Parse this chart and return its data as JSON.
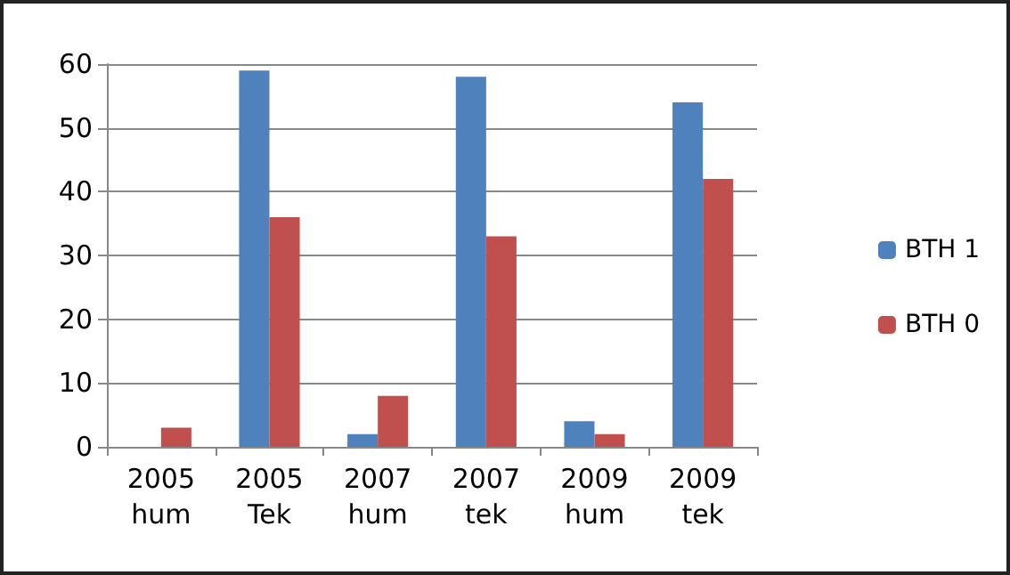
{
  "chart_data": {
    "type": "bar",
    "categories": [
      "2005 hum",
      "2005 Tek",
      "2007 hum",
      "2007 tek",
      "2009 hum",
      "2009 tek"
    ],
    "series": [
      {
        "name": "BTH 1",
        "color": "#4f81bd",
        "values": [
          0,
          59,
          2,
          58,
          4,
          54
        ]
      },
      {
        "name": "BTH 0",
        "color": "#c0504d",
        "values": [
          3,
          36,
          8,
          33,
          2,
          42
        ]
      }
    ],
    "ylim": [
      0,
      60
    ],
    "yticks": [
      0,
      10,
      20,
      30,
      40,
      50,
      60
    ],
    "grid": "y",
    "legend": "right"
  }
}
